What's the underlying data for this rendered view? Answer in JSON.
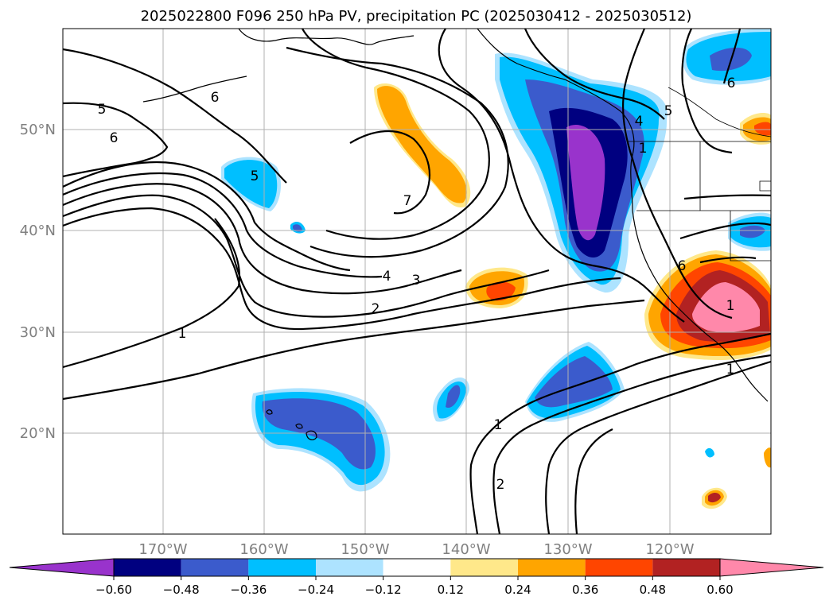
{
  "title": "2025022800 F096 250 hPa PV, precipitation PC (2025030412 - 2025030512)",
  "lat_labels": [
    "50°N",
    "40°N",
    "30°N",
    "20°N"
  ],
  "lon_labels": [
    "170°W",
    "160°W",
    "150°W",
    "140°W",
    "130°W",
    "120°W"
  ],
  "colorbar": {
    "tick_labels": [
      "−0.60",
      "−0.48",
      "−0.36",
      "−0.24",
      "−0.12",
      "0.12",
      "0.24",
      "0.36",
      "0.48",
      "0.60"
    ],
    "bins": [
      {
        "range": "< -0.60",
        "color": "#9933cc"
      },
      {
        "range": "-0.60 to -0.48",
        "color": "#000080"
      },
      {
        "range": "-0.48 to -0.36",
        "color": "#3b5bcc"
      },
      {
        "range": "-0.36 to -0.24",
        "color": "#00bfff"
      },
      {
        "range": "-0.24 to -0.12",
        "color": "#ade3ff"
      },
      {
        "range": "-0.12 to 0.12",
        "color": "#ffffff"
      },
      {
        "range": "0.12 to 0.24",
        "color": "#ffe88a"
      },
      {
        "range": "0.24 to 0.36",
        "color": "#ffa500"
      },
      {
        "range": "0.36 to 0.48",
        "color": "#ff4500"
      },
      {
        "range": "0.48 to 0.60",
        "color": "#b22222"
      },
      {
        "range": "> 0.60",
        "color": "#ff88aa"
      }
    ]
  },
  "contour_labels": [
    "6",
    "5",
    "6",
    "5",
    "4",
    "3",
    "2",
    "1",
    "1",
    "2",
    "4",
    "5",
    "1",
    "7",
    "1",
    "6",
    "6",
    "1"
  ]
}
